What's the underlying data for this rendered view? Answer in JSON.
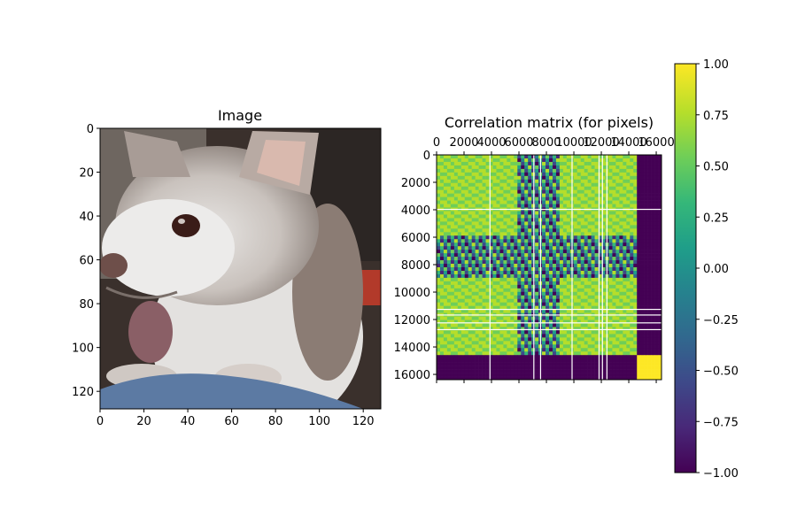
{
  "chart_data": [
    {
      "type": "image",
      "title": "Image",
      "subject": "chihuahua dog portrait",
      "xlim": [
        0,
        128
      ],
      "ylim": [
        128,
        0
      ],
      "x_ticks": [
        "0",
        "20",
        "40",
        "60",
        "80",
        "100",
        "120"
      ],
      "y_ticks": [
        "0",
        "20",
        "40",
        "60",
        "80",
        "100",
        "120"
      ]
    },
    {
      "type": "heatmap",
      "title": "Correlation matrix (for pixels)",
      "xlim": [
        0,
        16384
      ],
      "ylim": [
        16384,
        0
      ],
      "x_ticks": [
        "0",
        "2000",
        "4000",
        "6000",
        "8000",
        "10000",
        "12000",
        "14000",
        "16000"
      ],
      "y_ticks": [
        "0",
        "2000",
        "4000",
        "6000",
        "8000",
        "10000",
        "12000",
        "14000",
        "16000"
      ],
      "x_tick_position": "top",
      "colormap": "viridis",
      "colorbar": {
        "vmin": -1.0,
        "vmax": 1.0,
        "ticks": [
          "1.00",
          "0.75",
          "0.50",
          "0.25",
          "0.00",
          "−0.25",
          "−0.50",
          "−0.75",
          "−1.00"
        ]
      },
      "band_pattern": {
        "description": "block-structured correlation: bright yellow blocks (~0.9) among rows 0-6000 and 9000-14000; striped mixed region 6000-9000; dark purple (~-1) band 14500-16384 against other rows; white gaps appear as NaN lines"
      }
    }
  ],
  "colors": {
    "viridis": [
      "#440154",
      "#482878",
      "#3e4989",
      "#31688e",
      "#26828e",
      "#1f9e89",
      "#35b779",
      "#6ece58",
      "#b5de2b",
      "#fde725"
    ]
  }
}
